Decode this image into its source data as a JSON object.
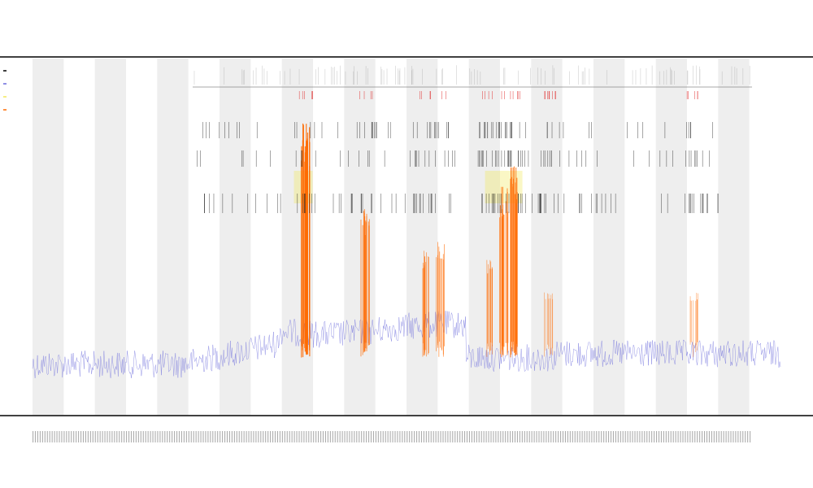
{
  "chart_data": {
    "type": "line",
    "title": "",
    "subtitle_lines": [],
    "xlabel": "",
    "ylabel": "",
    "grid": false,
    "legend_position": "top-left",
    "colors": {
      "background_band": "#e0e0e0",
      "baseline_series": "#6b6bdc",
      "spike_series": "#ff6a00",
      "highlight_band": "#f2e85a",
      "event_marks": "#000000",
      "flag_marks": "#e03030",
      "axis": "#000000"
    },
    "series": [
      {
        "name": "",
        "kind": "baseline-noise",
        "color": "#6b6bdc"
      },
      {
        "name": "",
        "kind": "spikes",
        "color": "#ff6a00"
      }
    ],
    "spike_regions": [
      {
        "center": 0.365,
        "intensity": 1.0
      },
      {
        "center": 0.445,
        "intensity": 0.6
      },
      {
        "center": 0.525,
        "intensity": 0.4
      },
      {
        "center": 0.545,
        "intensity": 0.45
      },
      {
        "center": 0.61,
        "intensity": 0.35
      },
      {
        "center": 0.63,
        "intensity": 0.7
      },
      {
        "center": 0.645,
        "intensity": 0.8
      },
      {
        "center": 0.69,
        "intensity": 0.2
      },
      {
        "center": 0.885,
        "intensity": 0.2
      }
    ],
    "band_count": 12
  }
}
